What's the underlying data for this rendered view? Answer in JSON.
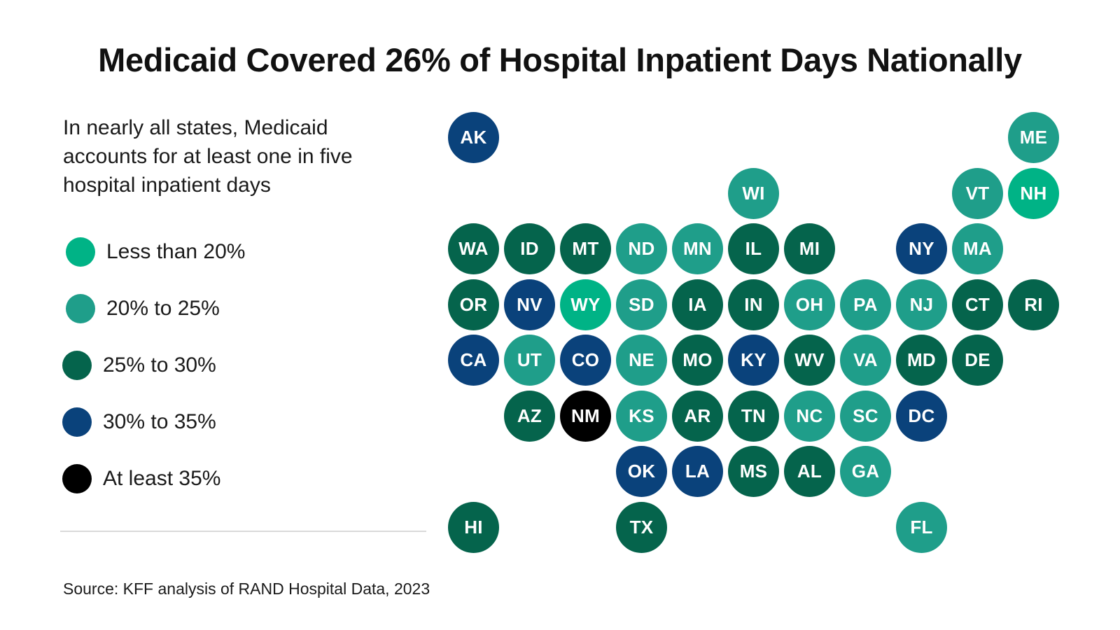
{
  "title": "Medicaid Covered 26% of Hospital Inpatient Days Nationally",
  "subtitle": "In nearly all states, Medicaid accounts for at least one in five hospital inpatient days",
  "source": "Source: KFF analysis of RAND Hospital Data, 2023",
  "legend": [
    {
      "label": "Less than 20%",
      "color": "#00b386"
    },
    {
      "label": "20% to 25%",
      "color": "#1f9e8a"
    },
    {
      "label": "25% to 30%",
      "color": "#05644c"
    },
    {
      "label": "30% to 35%",
      "color": "#0a427b"
    },
    {
      "label": "At least 35%",
      "color": "#000000"
    }
  ],
  "states": [
    {
      "abbr": "AK",
      "col": 0,
      "row": 0,
      "cat": 3
    },
    {
      "abbr": "ME",
      "col": 10,
      "row": 0,
      "cat": 1
    },
    {
      "abbr": "WI",
      "col": 5,
      "row": 1,
      "cat": 1
    },
    {
      "abbr": "VT",
      "col": 9,
      "row": 1,
      "cat": 1
    },
    {
      "abbr": "NH",
      "col": 10,
      "row": 1,
      "cat": 0
    },
    {
      "abbr": "WA",
      "col": 0,
      "row": 2,
      "cat": 2
    },
    {
      "abbr": "ID",
      "col": 1,
      "row": 2,
      "cat": 2
    },
    {
      "abbr": "MT",
      "col": 2,
      "row": 2,
      "cat": 2
    },
    {
      "abbr": "ND",
      "col": 3,
      "row": 2,
      "cat": 1
    },
    {
      "abbr": "MN",
      "col": 4,
      "row": 2,
      "cat": 1
    },
    {
      "abbr": "IL",
      "col": 5,
      "row": 2,
      "cat": 2
    },
    {
      "abbr": "MI",
      "col": 6,
      "row": 2,
      "cat": 2
    },
    {
      "abbr": "NY",
      "col": 8,
      "row": 2,
      "cat": 3
    },
    {
      "abbr": "MA",
      "col": 9,
      "row": 2,
      "cat": 1
    },
    {
      "abbr": "OR",
      "col": 0,
      "row": 3,
      "cat": 2
    },
    {
      "abbr": "NV",
      "col": 1,
      "row": 3,
      "cat": 3
    },
    {
      "abbr": "WY",
      "col": 2,
      "row": 3,
      "cat": 0
    },
    {
      "abbr": "SD",
      "col": 3,
      "row": 3,
      "cat": 1
    },
    {
      "abbr": "IA",
      "col": 4,
      "row": 3,
      "cat": 2
    },
    {
      "abbr": "IN",
      "col": 5,
      "row": 3,
      "cat": 2
    },
    {
      "abbr": "OH",
      "col": 6,
      "row": 3,
      "cat": 1
    },
    {
      "abbr": "PA",
      "col": 7,
      "row": 3,
      "cat": 1
    },
    {
      "abbr": "NJ",
      "col": 8,
      "row": 3,
      "cat": 1
    },
    {
      "abbr": "CT",
      "col": 9,
      "row": 3,
      "cat": 2
    },
    {
      "abbr": "RI",
      "col": 10,
      "row": 3,
      "cat": 2
    },
    {
      "abbr": "CA",
      "col": 0,
      "row": 4,
      "cat": 3
    },
    {
      "abbr": "UT",
      "col": 1,
      "row": 4,
      "cat": 1
    },
    {
      "abbr": "CO",
      "col": 2,
      "row": 4,
      "cat": 3
    },
    {
      "abbr": "NE",
      "col": 3,
      "row": 4,
      "cat": 1
    },
    {
      "abbr": "MO",
      "col": 4,
      "row": 4,
      "cat": 2
    },
    {
      "abbr": "KY",
      "col": 5,
      "row": 4,
      "cat": 3
    },
    {
      "abbr": "WV",
      "col": 6,
      "row": 4,
      "cat": 2
    },
    {
      "abbr": "VA",
      "col": 7,
      "row": 4,
      "cat": 1
    },
    {
      "abbr": "MD",
      "col": 8,
      "row": 4,
      "cat": 2
    },
    {
      "abbr": "DE",
      "col": 9,
      "row": 4,
      "cat": 2
    },
    {
      "abbr": "AZ",
      "col": 1,
      "row": 5,
      "cat": 2
    },
    {
      "abbr": "NM",
      "col": 2,
      "row": 5,
      "cat": 4
    },
    {
      "abbr": "KS",
      "col": 3,
      "row": 5,
      "cat": 1
    },
    {
      "abbr": "AR",
      "col": 4,
      "row": 5,
      "cat": 2
    },
    {
      "abbr": "TN",
      "col": 5,
      "row": 5,
      "cat": 2
    },
    {
      "abbr": "NC",
      "col": 6,
      "row": 5,
      "cat": 1
    },
    {
      "abbr": "SC",
      "col": 7,
      "row": 5,
      "cat": 1
    },
    {
      "abbr": "DC",
      "col": 8,
      "row": 5,
      "cat": 3
    },
    {
      "abbr": "OK",
      "col": 3,
      "row": 6,
      "cat": 3
    },
    {
      "abbr": "LA",
      "col": 4,
      "row": 6,
      "cat": 3
    },
    {
      "abbr": "MS",
      "col": 5,
      "row": 6,
      "cat": 2
    },
    {
      "abbr": "AL",
      "col": 6,
      "row": 6,
      "cat": 2
    },
    {
      "abbr": "GA",
      "col": 7,
      "row": 6,
      "cat": 1
    },
    {
      "abbr": "HI",
      "col": 0,
      "row": 7,
      "cat": 2
    },
    {
      "abbr": "TX",
      "col": 3,
      "row": 7,
      "cat": 2
    },
    {
      "abbr": "FL",
      "col": 8,
      "row": 7,
      "cat": 1
    }
  ]
}
